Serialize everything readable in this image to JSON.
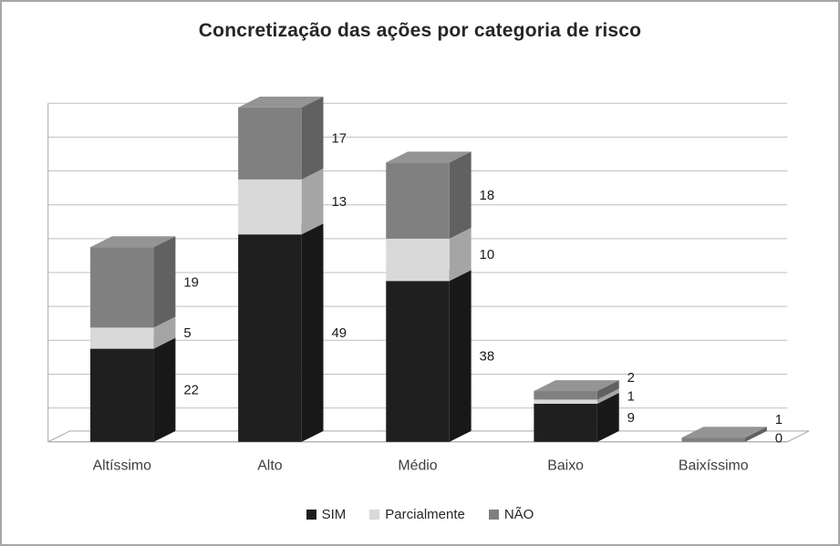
{
  "frame": {
    "border_color": "#a6a6a6",
    "background": "#ffffff"
  },
  "chart_data": {
    "type": "bar",
    "subtype": "stacked-3d",
    "title": "Concretização das ações por categoria de risco",
    "categories": [
      "Altíssimo",
      "Alto",
      "Médio",
      "Baixo",
      "Baixíssimo"
    ],
    "series": [
      {
        "name": "SIM",
        "color": "#1f1f1f",
        "values": [
          22,
          49,
          38,
          9,
          0
        ]
      },
      {
        "name": "Parcialmente",
        "color": "#d9d9d9",
        "values": [
          5,
          13,
          10,
          1,
          0
        ]
      },
      {
        "name": "NÃO",
        "color": "#808080",
        "values": [
          19,
          17,
          18,
          2,
          1
        ]
      }
    ],
    "totals": [
      46,
      79,
      66,
      12,
      1
    ],
    "ylim": [
      0,
      80
    ],
    "gridline_count": 10,
    "value_axis_labels_visible": false,
    "data_labels_visible": true,
    "legend_position": "bottom",
    "grid_color": "#bfbfbf",
    "axis_color": "#a6a6a6",
    "label_color": "#1a1a1a",
    "text_color": "#3f3f3f"
  },
  "legend": {
    "items": [
      "SIM",
      "Parcialmente",
      "NÃO"
    ]
  }
}
